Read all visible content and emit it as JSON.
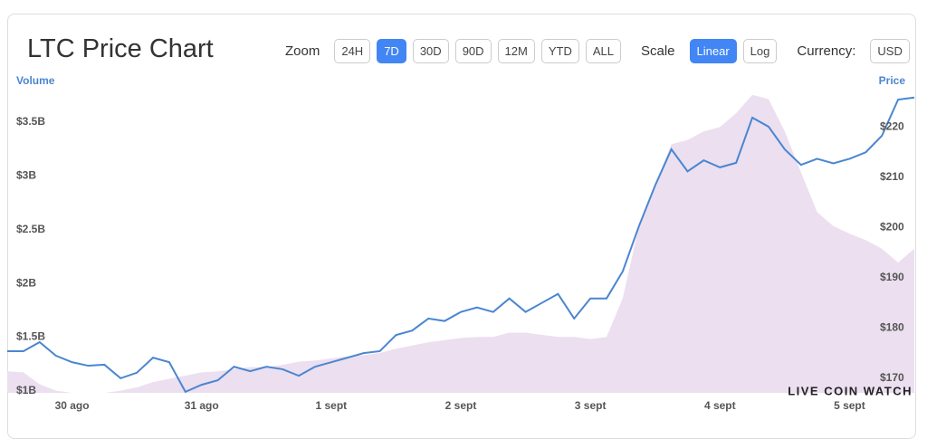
{
  "controls": {
    "zoom": {
      "label": "Zoom",
      "options": [
        "24H",
        "7D",
        "30D",
        "90D",
        "12M",
        "YTD",
        "ALL"
      ],
      "active": 1
    },
    "scale": {
      "label": "Scale",
      "options": [
        "Linear",
        "Log"
      ],
      "active": 0
    },
    "currency": {
      "label": "Currency:",
      "options": [
        "USD"
      ]
    }
  },
  "watermark": "LIVE COIN WATCH",
  "chart_data": {
    "type": "line",
    "title": "LTC Price Chart",
    "categories": [
      null,
      null,
      null,
      null,
      "30 ago",
      null,
      null,
      null,
      null,
      null,
      null,
      null,
      "31 ago",
      null,
      null,
      null,
      null,
      null,
      null,
      null,
      "1 sept",
      null,
      null,
      null,
      null,
      null,
      null,
      null,
      "2 sept",
      null,
      null,
      null,
      null,
      null,
      null,
      null,
      "3 sept",
      null,
      null,
      null,
      null,
      null,
      null,
      null,
      "4 sept",
      null,
      null,
      null,
      null,
      null,
      null,
      null,
      "5 sept",
      null,
      null,
      null,
      null
    ],
    "series": [
      {
        "name": "Volume",
        "kind": "area",
        "axis": "y",
        "color": "#ecdff0",
        "values": [
          1200000000.0,
          1190000000.0,
          1080000000.0,
          1020000000.0,
          1000000000.0,
          1000000000.0,
          1000000000.0,
          1020000000.0,
          1050000000.0,
          1100000000.0,
          1130000000.0,
          1160000000.0,
          1190000000.0,
          1200000000.0,
          1220000000.0,
          1240000000.0,
          1240000000.0,
          1260000000.0,
          1290000000.0,
          1300000000.0,
          1320000000.0,
          1340000000.0,
          1350000000.0,
          1370000000.0,
          1410000000.0,
          1440000000.0,
          1470000000.0,
          1490000000.0,
          1510000000.0,
          1520000000.0,
          1520000000.0,
          1560000000.0,
          1560000000.0,
          1540000000.0,
          1520000000.0,
          1520000000.0,
          1500000000.0,
          1520000000.0,
          1880000000.0,
          2550000000.0,
          2930000000.0,
          3310000000.0,
          3350000000.0,
          3430000000.0,
          3470000000.0,
          3600000000.0,
          3770000000.0,
          3730000000.0,
          3430000000.0,
          3050000000.0,
          2680000000.0,
          2550000000.0,
          2480000000.0,
          2420000000.0,
          2340000000.0,
          2210000000.0,
          2340000000.0
        ]
      },
      {
        "name": "Price",
        "kind": "line",
        "axis": "y2",
        "color": "#4a86d0",
        "values": [
          175.4,
          175.4,
          177.2,
          174.5,
          173.2,
          172.5,
          172.7,
          170,
          171.1,
          174.1,
          173.2,
          167.3,
          168.7,
          169.6,
          172.3,
          171.4,
          172.3,
          171.8,
          170.5,
          172.3,
          173.2,
          174.1,
          175,
          175.4,
          178.6,
          179.5,
          181.9,
          181.4,
          183.2,
          184.1,
          183.2,
          185.9,
          183.2,
          185,
          186.8,
          181.9,
          185.9,
          185.9,
          191.3,
          200.3,
          208.4,
          215.6,
          211.2,
          213.4,
          212,
          212.9,
          221.9,
          220.1,
          215.6,
          212.5,
          213.7,
          212.8,
          213.7,
          215,
          218.3,
          225.5,
          225.9
        ]
      }
    ],
    "ylim": [
      1000000000.0,
      3810000000.0
    ],
    "yticks": [
      {
        "value": 1000000000.0,
        "label": "$1B"
      },
      {
        "value": 1500000000.0,
        "label": "$1.5B"
      },
      {
        "value": 2000000000.0,
        "label": "$2B"
      },
      {
        "value": 2500000000.0,
        "label": "$2.5B"
      },
      {
        "value": 3000000000.0,
        "label": "$3B"
      },
      {
        "value": 3500000000.0,
        "label": "$3.5B"
      }
    ],
    "y2lim": [
      167.1,
      227.3
    ],
    "y2ticks": [
      {
        "value": 170,
        "label": "$170"
      },
      {
        "value": 180,
        "label": "$180"
      },
      {
        "value": 190,
        "label": "$190"
      },
      {
        "value": 200,
        "label": "$200"
      },
      {
        "value": 210,
        "label": "$210"
      },
      {
        "value": 220,
        "label": "$220"
      }
    ],
    "grid": false
  }
}
